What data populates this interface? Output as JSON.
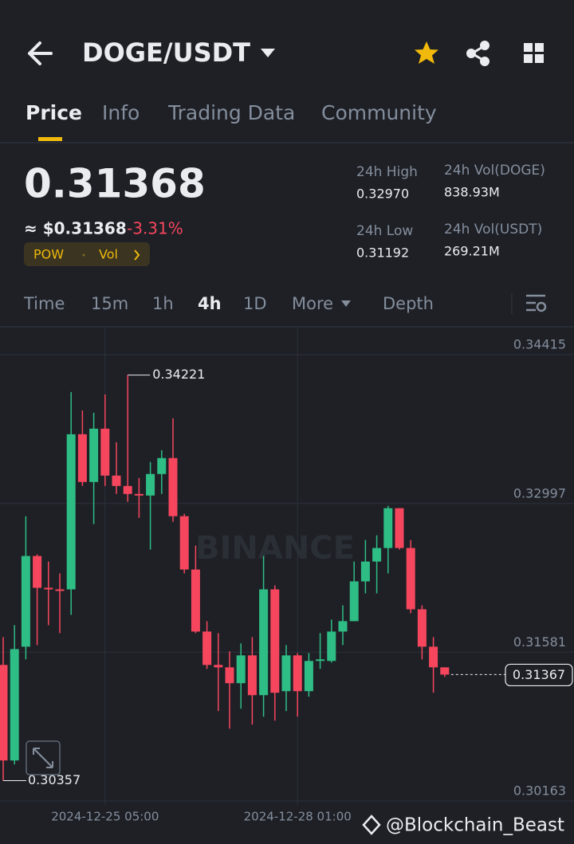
{
  "header": {
    "pair": "DOGE/USDT"
  },
  "tabs": [
    "Price",
    "Info",
    "Trading Data",
    "Community"
  ],
  "price": {
    "last": "0.31368",
    "approx": "≈ $0.31368",
    "change": "-3.31%",
    "tags": [
      "POW",
      "Vol"
    ]
  },
  "stats": [
    {
      "label": "24h High",
      "value": "0.32970"
    },
    {
      "label": "24h Vol(DOGE)",
      "value": "838.93M"
    },
    {
      "label": "24h Low",
      "value": "0.31192"
    },
    {
      "label": "24h Vol(USDT)",
      "value": "269.21M"
    }
  ],
  "intervals": [
    "Time",
    "15m",
    "1h",
    "4h",
    "1D",
    "More",
    "Depth"
  ],
  "chart_data": {
    "type": "candlestick",
    "watermark": "BINANCE",
    "categories": [
      null,
      null,
      null,
      null,
      null,
      null,
      null,
      null,
      null,
      "2024-12-25 05:00",
      null,
      null,
      null,
      null,
      null,
      null,
      null,
      null,
      null,
      null,
      null,
      null,
      null,
      null,
      null,
      null,
      "2024-12-28 01:00",
      null,
      null,
      null,
      null,
      null,
      null,
      null,
      null,
      null,
      null,
      null,
      null,
      null
    ],
    "open": [
      0.31459,
      0.30549,
      0.31633,
      0.32497,
      0.32194,
      0.32179,
      0.32179,
      0.33657,
      0.33202,
      0.3371,
      0.33263,
      0.33164,
      0.33088,
      0.33073,
      0.33278,
      0.3343,
      0.32876,
      0.32368,
      0.31777,
      0.31459,
      0.31436,
      0.31285,
      0.3155,
      0.31171,
      0.32179,
      0.31209,
      0.3155,
      0.31209,
      0.31497,
      0.31497,
      0.31777,
      0.31876,
      0.32255,
      0.32444,
      0.32573,
      0.32952,
      0.32573,
      0.31989,
      0.31633,
      0.31436
    ],
    "high": [
      0.31724,
      0.31838,
      0.32876,
      0.32512,
      0.32444,
      0.32331,
      0.34059,
      0.33884,
      0.33862,
      0.34036,
      0.33581,
      0.34221,
      0.3324,
      0.33392,
      0.33505,
      0.33809,
      0.32899,
      0.32596,
      0.31876,
      0.31762,
      0.31589,
      0.31664,
      0.31724,
      0.32497,
      0.32217,
      0.31648,
      0.31572,
      0.31572,
      0.31762,
      0.31891,
      0.32027,
      0.32444,
      0.32649,
      0.32694,
      0.32975,
      0.32952,
      0.32649,
      0.32027,
      0.31724,
      0.31436
    ],
    "low": [
      0.30357,
      0.30511,
      0.31512,
      0.31648,
      0.31838,
      0.31762,
      0.31936,
      0.33164,
      0.32801,
      0.33164,
      0.33088,
      0.33013,
      0.32861,
      0.32558,
      0.33088,
      0.32823,
      0.32331,
      0.31762,
      0.31421,
      0.31019,
      0.30852,
      0.31042,
      0.3089,
      0.30966,
      0.30928,
      0.31019,
      0.30966,
      0.31156,
      0.31421,
      0.31482,
      0.31648,
      0.31876,
      0.32141,
      0.32141,
      0.32331,
      0.32558,
      0.31951,
      0.31512,
      0.31194,
      0.31345
    ],
    "close": [
      0.30549,
      0.3161,
      0.32497,
      0.32194,
      0.32179,
      0.32164,
      0.33657,
      0.33202,
      0.3371,
      0.33263,
      0.33164,
      0.33088,
      0.33073,
      0.33278,
      0.3343,
      0.32876,
      0.32368,
      0.31777,
      0.31459,
      0.31436,
      0.31285,
      0.3155,
      0.31171,
      0.32179,
      0.31194,
      0.3155,
      0.31209,
      0.31497,
      0.31512,
      0.31777,
      0.31876,
      0.32255,
      0.32444,
      0.32573,
      0.32952,
      0.32573,
      0.31989,
      0.31633,
      0.31436,
      0.31367
    ],
    "up_color": "#2ebd85",
    "down_color": "#f6465d",
    "ylim": [
      0.30125,
      0.34681
    ],
    "yticks": [
      0.34415,
      0.32997,
      0.31581,
      0.30163
    ],
    "grid": true
  },
  "footer": {
    "credit": "@Blockchain_Beast"
  }
}
